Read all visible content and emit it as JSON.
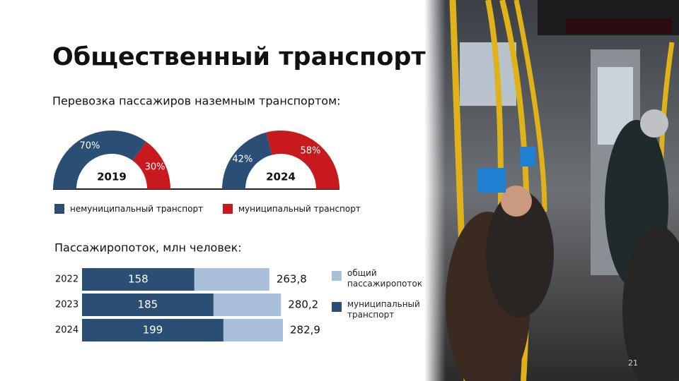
{
  "header": {
    "title": "Общественный транспорт"
  },
  "page_number": "21",
  "chart_data": [
    {
      "type": "half-donut",
      "title": "Перевозка пассажиров наземным транспортом:",
      "categories": [
        "немуниципальный транспорт",
        "муниципальный транспорт"
      ],
      "colors": [
        "#2a4e74",
        "#c8191e"
      ],
      "series": [
        {
          "name": "2019",
          "values": [
            70,
            30
          ],
          "value_labels": [
            "70%",
            "30%"
          ]
        },
        {
          "name": "2024",
          "values": [
            42,
            58
          ],
          "value_labels": [
            "42%",
            "58%"
          ]
        }
      ]
    },
    {
      "type": "bar",
      "title": "Пассажиропоток, млн человек:",
      "categories": [
        "2022",
        "2023",
        "2024"
      ],
      "series": [
        {
          "name": "общий пассажиропоток",
          "color": "#a9bfd9",
          "values": [
            263.8,
            280.2,
            282.9
          ],
          "value_labels": [
            "263,8",
            "280,2",
            "282,9"
          ]
        },
        {
          "name": "муниципальный транспорт",
          "color": "#2a4e74",
          "values": [
            158,
            185,
            199
          ]
        }
      ]
    }
  ]
}
